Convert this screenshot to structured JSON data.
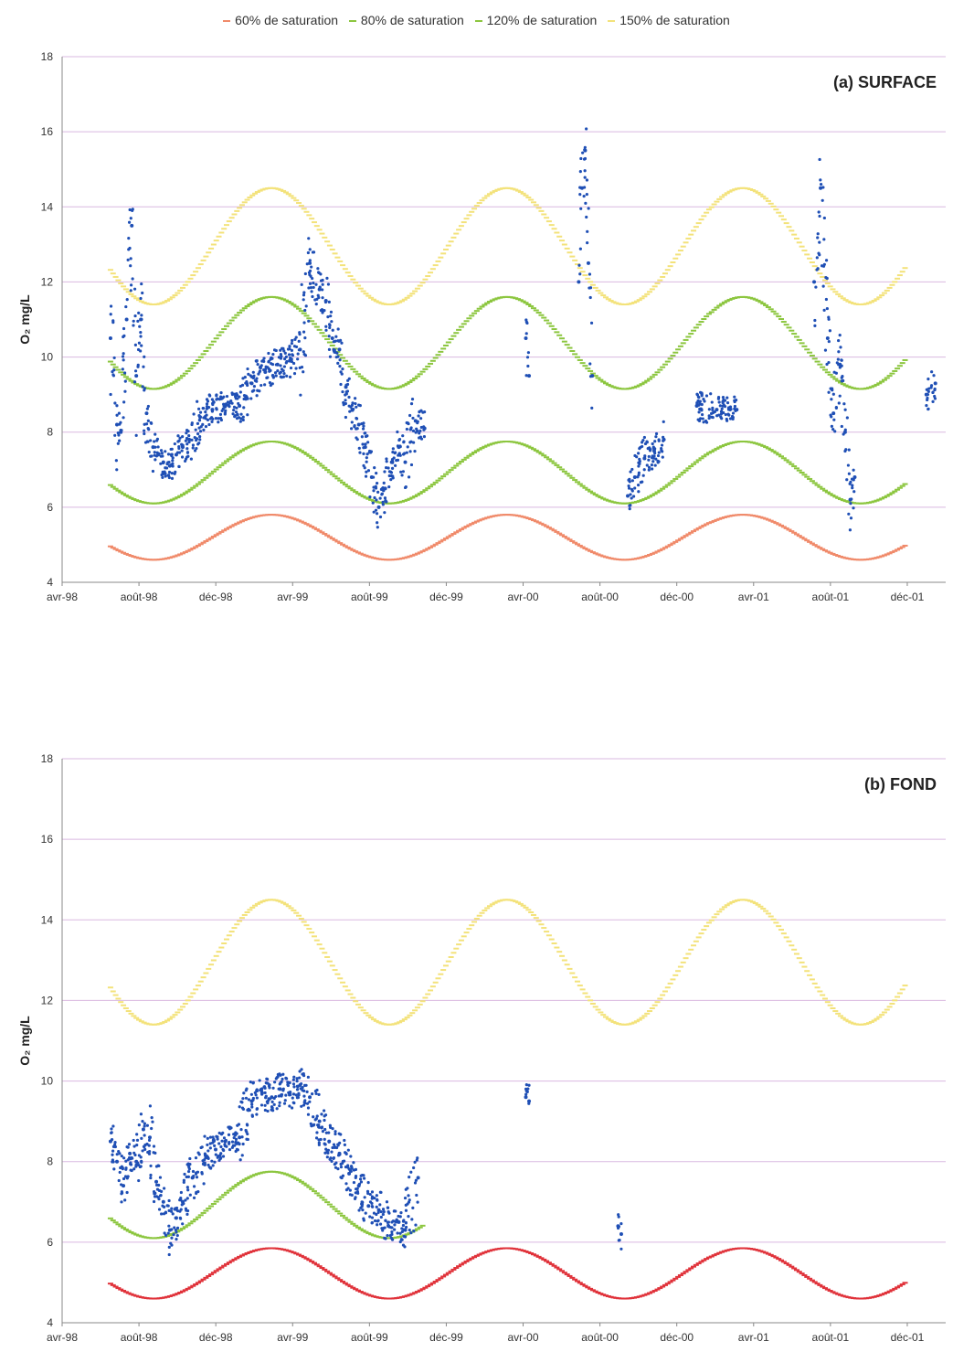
{
  "legend": {
    "items": [
      {
        "label": "60% de saturation",
        "color": "#f08a6a"
      },
      {
        "label": "80% de saturation",
        "color": "#8cc63f"
      },
      {
        "label": "120% de saturation",
        "color": "#8cc63f"
      },
      {
        "label": "150% de saturation",
        "color": "#f3e27a"
      }
    ]
  },
  "chart_data": [
    {
      "type": "scatter",
      "title": "(a) SURFACE",
      "ylabel": "O₂ mg/L",
      "ylim": [
        4,
        18
      ],
      "yticks": [
        4,
        6,
        8,
        10,
        12,
        14,
        16,
        18
      ],
      "xlim": [
        "1998-04-01",
        "2001-12-31"
      ],
      "xticks": [
        "avr-98",
        "août-98",
        "déc-98",
        "avr-99",
        "août-99",
        "déc-99",
        "avr-00",
        "août-00",
        "déc-00",
        "avr-01",
        "août-01",
        "déc-01"
      ],
      "grid": true,
      "colors": {
        "observed": "#1f4fb5",
        "sat60": "#f08a6a",
        "sat80": "#8cc63f",
        "sat120": "#8cc63f",
        "sat150": "#f3e27a"
      },
      "saturation_curves": {
        "sat60": {
          "low": 4.6,
          "high": 5.8
        },
        "sat80": {
          "low": 6.1,
          "high": 7.75
        },
        "sat120": {
          "low": 9.15,
          "high": 11.6
        },
        "sat150": {
          "low": 11.4,
          "high": 14.5
        },
        "x_start": "1998-06-15",
        "x_end": "2001-10-31",
        "minimum_date": "08-20",
        "maximum_date": "02-20"
      },
      "series": [
        {
          "x": [
            "1998-06-15",
            "1998-06-25",
            "1998-07-01",
            "1998-07-10",
            "1998-07-18",
            "1998-07-25",
            "1998-08-01",
            "1998-08-10",
            "1998-08-20",
            "1998-08-28",
            "1998-09-05",
            "1998-09-15",
            "1998-09-25",
            "1998-10-05",
            "1998-10-15",
            "1998-11-01",
            "1998-11-20",
            "1998-12-10",
            "1999-01-01",
            "1999-01-20",
            "1999-02-10",
            "1999-03-01",
            "1999-03-20",
            "1999-04-05",
            "1999-04-20",
            "1999-05-05",
            "1999-05-15",
            "1999-05-25",
            "1999-06-05",
            "1999-06-15",
            "1999-06-25",
            "1999-07-05",
            "1999-07-15",
            "1999-07-25",
            "1999-08-05",
            "1999-08-15",
            "1999-08-25",
            "1999-09-05",
            "1999-09-15",
            "1999-10-01",
            "1999-10-15",
            "2000-03-20",
            "2000-03-25",
            "2000-06-10",
            "2000-06-15",
            "2000-06-20",
            "2000-06-25",
            "2000-07-01",
            "2000-08-25",
            "2000-09-05",
            "2000-09-20",
            "2000-10-05",
            "2000-10-20",
            "2000-12-10",
            "2001-01-10",
            "2001-02-10",
            "2001-06-10",
            "2001-06-20",
            "2001-07-01",
            "2001-07-10",
            "2001-07-20",
            "2001-07-28",
            "2001-08-05",
            "2001-08-12",
            "2001-12-01",
            "2001-12-15"
          ],
          "y": [
            10.5,
            8.2,
            8.0,
            11.0,
            13.5,
            9.5,
            11.0,
            8.5,
            7.6,
            7.4,
            7.2,
            7.1,
            7.4,
            7.6,
            7.8,
            8.4,
            8.6,
            8.7,
            8.7,
            9.3,
            9.6,
            9.8,
            9.9,
            10.2,
            12.5,
            11.8,
            11.5,
            10.5,
            10.2,
            9.2,
            8.6,
            8.2,
            7.6,
            6.8,
            6.0,
            6.5,
            7.2,
            7.6,
            7.2,
            8.3,
            8.1,
            10.5,
            9.5,
            12.0,
            14.5,
            15.5,
            12.5,
            9.5,
            6.3,
            6.8,
            7.3,
            7.5,
            7.8,
            8.7,
            8.6,
            8.6,
            12.0,
            14.5,
            10.5,
            8.5,
            9.8,
            8.0,
            6.2,
            6.8,
            9.0,
            9.3
          ]
        }
      ]
    },
    {
      "type": "scatter",
      "title": "(b) FOND",
      "ylabel": "O₂ mg/L",
      "ylim": [
        4,
        18
      ],
      "yticks": [
        4,
        6,
        8,
        10,
        12,
        14,
        16,
        18
      ],
      "xlim": [
        "1998-04-01",
        "2001-12-31"
      ],
      "xticks": [
        "avr-98",
        "août-98",
        "déc-98",
        "avr-99",
        "août-99",
        "déc-99",
        "avr-00",
        "août-00",
        "déc-00",
        "avr-01",
        "août-01",
        "déc-01"
      ],
      "grid": true,
      "colors": {
        "observed": "#1f4fb5",
        "sat60": "#e0323a",
        "sat80": "#8cc63f",
        "sat150": "#f3e27a"
      },
      "saturation_curves": {
        "sat60": {
          "low": 4.6,
          "high": 5.85
        },
        "sat80_partial": {
          "from": "1998-06-15",
          "to": "1999-10-15",
          "low": 6.1,
          "high": 7.75
        },
        "sat150": {
          "low": 11.4,
          "high": 14.5
        },
        "x_start": "1998-06-15",
        "x_end": "2001-10-31",
        "minimum_date": "08-20",
        "maximum_date": "02-20"
      },
      "series": [
        {
          "x": [
            "1998-06-15",
            "1998-06-25",
            "1998-07-05",
            "1998-07-15",
            "1998-07-25",
            "1998-08-05",
            "1998-08-15",
            "1998-08-25",
            "1998-09-05",
            "1998-09-15",
            "1998-09-25",
            "1998-10-05",
            "1998-10-20",
            "1998-11-10",
            "1998-11-25",
            "1998-12-10",
            "1999-01-01",
            "1999-01-20",
            "1999-02-05",
            "1999-02-20",
            "1999-03-05",
            "1999-03-20",
            "1999-04-05",
            "1999-04-20",
            "1999-05-05",
            "1999-05-20",
            "1999-06-05",
            "1999-06-20",
            "1999-07-05",
            "1999-07-20",
            "1999-08-05",
            "1999-08-20",
            "1999-09-05",
            "1999-09-15",
            "1999-10-05",
            "2000-03-20",
            "2000-03-25",
            "2000-08-10",
            "2000-08-15"
          ],
          "y": [
            8.5,
            8.0,
            7.4,
            8.2,
            8.0,
            8.8,
            8.6,
            7.5,
            7.0,
            6.3,
            6.6,
            7.0,
            7.6,
            8.1,
            8.3,
            8.5,
            8.6,
            9.5,
            9.7,
            9.6,
            9.8,
            9.7,
            9.9,
            9.6,
            9.0,
            8.5,
            8.2,
            7.7,
            7.4,
            6.9,
            6.8,
            6.4,
            6.5,
            6.3,
            7.6,
            9.6,
            9.5,
            6.4,
            6.2
          ]
        }
      ]
    }
  ]
}
